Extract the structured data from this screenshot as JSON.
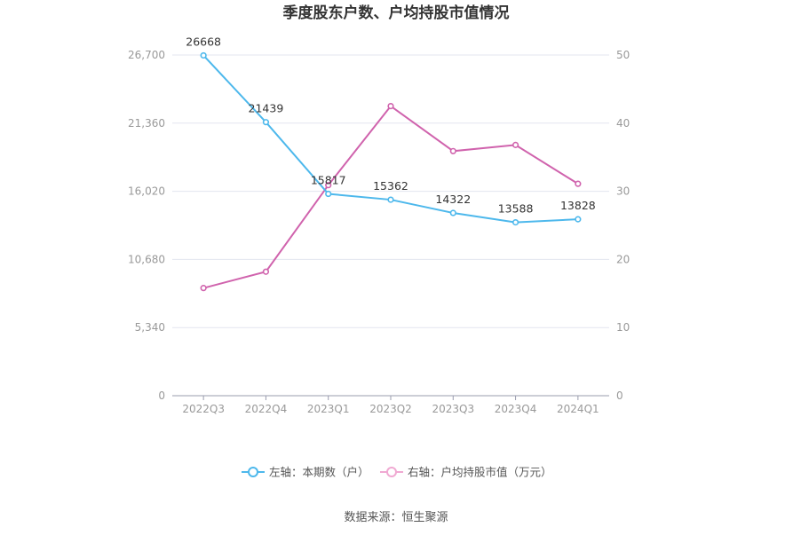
{
  "chart_data": {
    "type": "line",
    "title": "季度股东户数、户均持股市值情况",
    "categories": [
      "2022Q3",
      "2022Q4",
      "2023Q1",
      "2023Q2",
      "2023Q3",
      "2023Q4",
      "2024Q1"
    ],
    "y_left": {
      "ticks": [
        "0",
        "5,340",
        "10,680",
        "16,020",
        "21,360",
        "26,700"
      ],
      "ylim": [
        0,
        26700
      ]
    },
    "y_right": {
      "ticks": [
        "0",
        "10",
        "20",
        "30",
        "40",
        "50"
      ],
      "ylim": [
        0,
        50
      ]
    },
    "series": [
      {
        "name": "左轴：本期数（户）",
        "axis": "left",
        "color": "#4db8ec",
        "values": [
          26668,
          21439,
          15817,
          15362,
          14322,
          13588,
          13828
        ],
        "labels": [
          "26668",
          "21439",
          "15817",
          "15362",
          "14322",
          "13588",
          "13828"
        ]
      },
      {
        "name": "右轴：户均持股市值（万元）",
        "axis": "right",
        "color": "#d063ad",
        "values": [
          15.8,
          18.2,
          30.9,
          42.5,
          35.9,
          36.8,
          31.1
        ]
      }
    ],
    "grid": true,
    "legend_position": "bottom-center"
  },
  "source": "数据来源：恒生聚源"
}
